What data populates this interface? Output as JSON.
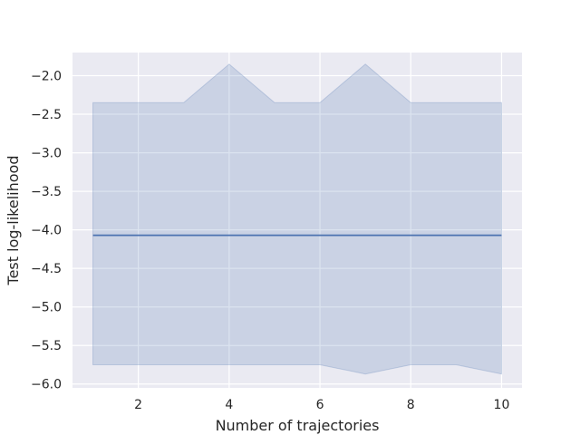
{
  "chart_data": {
    "type": "line",
    "title": "",
    "xlabel": "Number of trajectories",
    "ylabel": "Test log-likelihood",
    "xlim": [
      0.55,
      10.45
    ],
    "ylim": [
      -6.05,
      -1.7
    ],
    "grid": true,
    "legend": "none",
    "xticks": [
      2,
      4,
      6,
      8,
      10
    ],
    "xtick_labels": [
      "2",
      "4",
      "6",
      "8",
      "10"
    ],
    "yticks": [
      -2.0,
      -2.5,
      -3.0,
      -3.5,
      -4.0,
      -4.5,
      -5.0,
      -5.5,
      -6.0
    ],
    "ytick_labels": [
      "−2.0",
      "−2.5",
      "−3.0",
      "−3.5",
      "−4.0",
      "−4.5",
      "−5.0",
      "−5.5",
      "−6.0"
    ],
    "x": [
      1,
      2,
      3,
      4,
      5,
      6,
      7,
      8,
      9,
      10
    ],
    "series": [
      {
        "values": [
          -4.07,
          -4.07,
          -4.07,
          -4.07,
          -4.07,
          -4.07,
          -4.07,
          -4.07,
          -4.07,
          -4.07
        ],
        "band_upper": [
          -2.35,
          -2.35,
          -2.35,
          -1.85,
          -2.35,
          -2.35,
          -1.85,
          -2.35,
          -2.35,
          -2.35
        ],
        "band_lower": [
          -5.75,
          -5.75,
          -5.75,
          -5.75,
          -5.75,
          -5.75,
          -5.87,
          -5.75,
          -5.75,
          -5.87
        ],
        "color": "#4c72b0"
      }
    ],
    "colors": {
      "plot_background": "#eaeaf2",
      "grid": "#ffffff",
      "band_opacity": 0.2
    }
  }
}
